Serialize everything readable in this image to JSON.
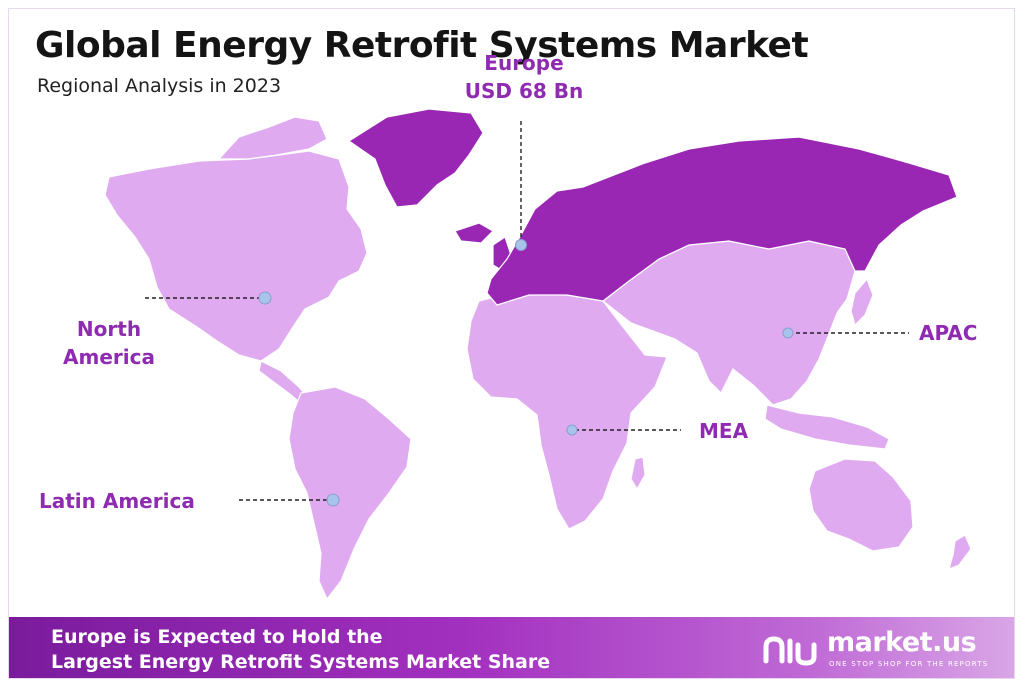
{
  "header": {
    "title": "Global Energy Retrofit Systems Market",
    "subtitle": "Regional Analysis in 2023"
  },
  "regions": [
    {
      "id": "europe",
      "line1": "Europe",
      "line2": "USD 68 Bn",
      "highlighted": true
    },
    {
      "id": "north-america",
      "line1": "North",
      "line2": "America",
      "highlighted": false
    },
    {
      "id": "latin-america",
      "line1": "Latin America",
      "line2": "",
      "highlighted": false
    },
    {
      "id": "mea",
      "line1": "MEA",
      "line2": "",
      "highlighted": false
    },
    {
      "id": "apac",
      "line1": "APAC",
      "line2": "",
      "highlighted": false
    }
  ],
  "footer": {
    "line1": "Europe is Expected to Hold the",
    "line2": "Largest Energy Retrofit Systems Market Share",
    "brand_name": "market.us",
    "brand_tagline": "ONE STOP SHOP FOR THE REPORTS"
  },
  "colors": {
    "highlight_region": "#9a27b4",
    "other_regions": "#e0aaf0",
    "label_text": "#8e2bb0",
    "marker": "#a8c4ea"
  }
}
